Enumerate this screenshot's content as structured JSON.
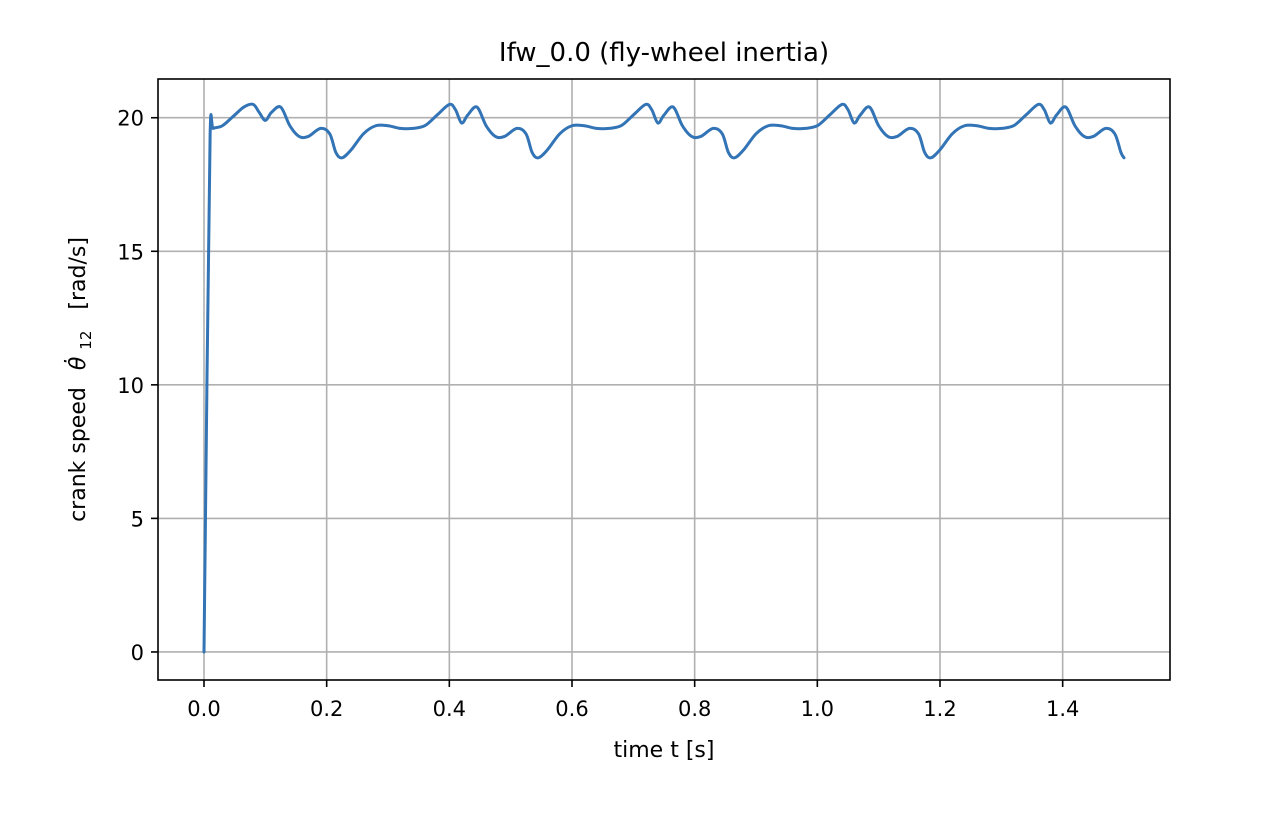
{
  "chart_data": {
    "type": "line",
    "title": "Ifw_0.0  (fly-wheel inertia)",
    "xlabel": "time  t  [s]",
    "ylabel_prefix": "crank speed",
    "ylabel_symbol": "θ̇",
    "ylabel_subscript": "12",
    "ylabel_unit": "[rad/s]",
    "xlim": [
      -0.075,
      1.575
    ],
    "ylim": [
      -1.05,
      21.45
    ],
    "xticks": [
      0.0,
      0.2,
      0.4,
      0.6,
      0.8,
      1.0,
      1.2,
      1.4
    ],
    "xtick_labels": [
      "0.0",
      "0.2",
      "0.4",
      "0.6",
      "0.8",
      "1.0",
      "1.2",
      "1.4"
    ],
    "yticks": [
      0,
      5,
      10,
      15,
      20
    ],
    "ytick_labels": [
      "0",
      "5",
      "10",
      "15",
      "20"
    ],
    "grid": true,
    "series": [
      {
        "color": "#3274b5",
        "x": [
          0.0,
          0.005,
          0.01,
          0.015,
          0.03,
          0.05,
          0.065,
          0.08,
          0.09,
          0.1,
          0.11,
          0.125,
          0.14,
          0.155,
          0.17,
          0.19,
          0.205,
          0.215,
          0.225,
          0.24,
          0.26,
          0.28,
          0.3,
          0.32,
          0.34,
          0.36,
          0.38,
          0.4,
          0.41,
          0.42,
          0.43,
          0.445,
          0.46,
          0.475,
          0.49,
          0.51,
          0.525,
          0.535,
          0.545,
          0.56,
          0.58,
          0.6,
          0.62,
          0.64,
          0.66,
          0.68,
          0.7,
          0.72,
          0.73,
          0.74,
          0.75,
          0.765,
          0.78,
          0.795,
          0.81,
          0.83,
          0.845,
          0.855,
          0.865,
          0.88,
          0.9,
          0.92,
          0.94,
          0.96,
          0.98,
          1.0,
          1.02,
          1.04,
          1.05,
          1.06,
          1.07,
          1.085,
          1.1,
          1.115,
          1.13,
          1.15,
          1.165,
          1.175,
          1.185,
          1.2,
          1.22,
          1.24,
          1.26,
          1.28,
          1.3,
          1.32,
          1.34,
          1.36,
          1.37,
          1.38,
          1.39,
          1.405,
          1.42,
          1.435,
          1.45,
          1.47,
          1.485,
          1.495,
          1.5
        ],
        "y": [
          0.0,
          10.5,
          19.4,
          19.6,
          19.7,
          20.1,
          20.4,
          20.5,
          20.2,
          19.9,
          20.2,
          20.4,
          19.7,
          19.3,
          19.3,
          19.6,
          19.4,
          18.7,
          18.5,
          18.8,
          19.4,
          19.7,
          19.7,
          19.6,
          19.6,
          19.7,
          20.1,
          20.5,
          20.3,
          19.8,
          20.1,
          20.4,
          19.7,
          19.3,
          19.3,
          19.6,
          19.4,
          18.7,
          18.5,
          18.8,
          19.4,
          19.7,
          19.7,
          19.6,
          19.6,
          19.7,
          20.1,
          20.5,
          20.3,
          19.8,
          20.1,
          20.4,
          19.7,
          19.3,
          19.3,
          19.6,
          19.4,
          18.7,
          18.5,
          18.8,
          19.4,
          19.7,
          19.7,
          19.6,
          19.6,
          19.7,
          20.1,
          20.5,
          20.3,
          19.8,
          20.1,
          20.4,
          19.7,
          19.3,
          19.3,
          19.6,
          19.4,
          18.7,
          18.5,
          18.8,
          19.4,
          19.7,
          19.7,
          19.6,
          19.6,
          19.7,
          20.1,
          20.5,
          20.3,
          19.8,
          20.1,
          20.4,
          19.7,
          19.3,
          19.3,
          19.6,
          19.4,
          18.7,
          18.5
        ]
      }
    ]
  }
}
